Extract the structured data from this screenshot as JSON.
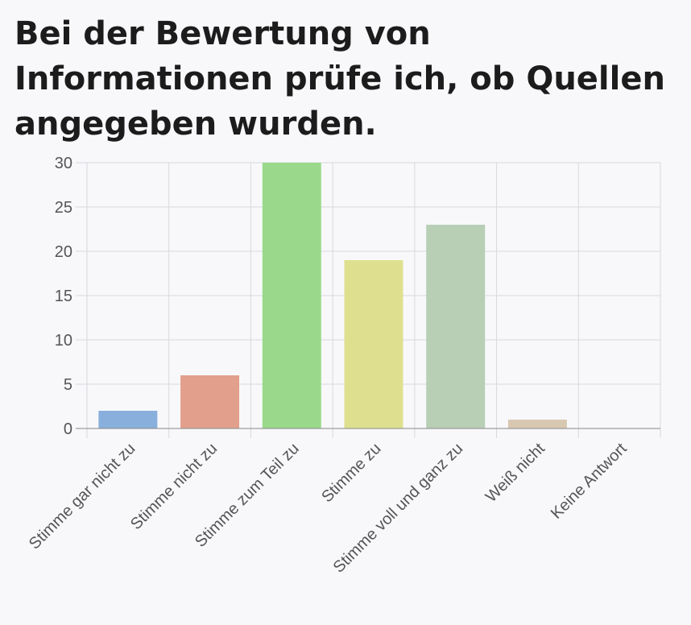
{
  "title": "Bei der Bewertung von Informationen prüfe ich, ob Quellen angegeben wurden.",
  "chart_data": {
    "type": "bar",
    "title": "Bei der Bewertung von Informationen prüfe ich, ob Quellen angegeben wurden.",
    "categories": [
      "Stimme gar nicht zu",
      "Stimme nicht zu",
      "Stimme zum Teil zu",
      "Stimme zu",
      "Stimme voll und ganz zu",
      "Weiß nicht",
      "Keine Antwort"
    ],
    "values": [
      2,
      6,
      30,
      19,
      23,
      1,
      0
    ],
    "colors": [
      "#89b0dc",
      "#e2a08c",
      "#9ad98b",
      "#dfe08f",
      "#b8cfb6",
      "#d9c8b1",
      "#cccccc"
    ],
    "xlabel": "",
    "ylabel": "",
    "ylim": [
      0,
      30
    ],
    "yticks": [
      0,
      5,
      10,
      15,
      20,
      25,
      30
    ],
    "grid": true,
    "legend": "none"
  }
}
